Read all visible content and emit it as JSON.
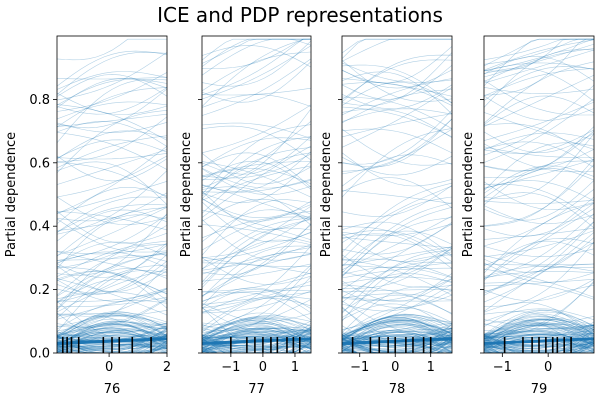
{
  "chart_data": {
    "type": "line",
    "title": "ICE and PDP representations",
    "ylim": [
      0,
      1
    ],
    "grid": false,
    "ice_color": "#1f77b4",
    "rug_color": "#000000",
    "yticks": [
      "0.0",
      "0.2",
      "0.4",
      "0.6",
      "0.8"
    ],
    "panels": [
      {
        "xlabel": "76",
        "ylabel": "Partial dependence",
        "xlim": [
          -1.8,
          2.0
        ],
        "xticks": [
          "0",
          "2"
        ],
        "xtick_values": [
          0,
          2
        ],
        "rug": [
          -1.6,
          -1.45,
          -1.3,
          -1.05,
          -0.2,
          0.1,
          0.35,
          0.8,
          1.45
        ],
        "ice_lines": 200
      },
      {
        "xlabel": "77",
        "ylabel": "Partial dependence",
        "xlim": [
          -1.9,
          1.5
        ],
        "xticks": [
          "−1",
          "0",
          "1"
        ],
        "xtick_values": [
          -1,
          0,
          1
        ],
        "rug": [
          -1.0,
          -0.5,
          -0.25,
          0.0,
          0.25,
          0.45,
          0.75,
          0.95,
          1.15
        ],
        "ice_lines": 200
      },
      {
        "xlabel": "78",
        "ylabel": "Partial dependence",
        "xlim": [
          -1.5,
          1.6
        ],
        "xticks": [
          "−1",
          "0",
          "1"
        ],
        "xtick_values": [
          -1,
          0,
          1
        ],
        "rug": [
          -1.2,
          -0.7,
          -0.45,
          -0.2,
          0.0,
          0.3,
          0.5,
          0.8,
          1.0
        ],
        "ice_lines": 200
      },
      {
        "xlabel": "79",
        "ylabel": "Partial dependence",
        "xlim": [
          -1.4,
          1.0
        ],
        "xticks": [
          "−1",
          "0"
        ],
        "xtick_values": [
          -1,
          0
        ],
        "rug": [
          -0.95,
          -0.55,
          -0.35,
          -0.2,
          -0.05,
          0.1,
          0.2,
          0.35,
          0.5
        ],
        "ice_lines": 200
      }
    ]
  }
}
